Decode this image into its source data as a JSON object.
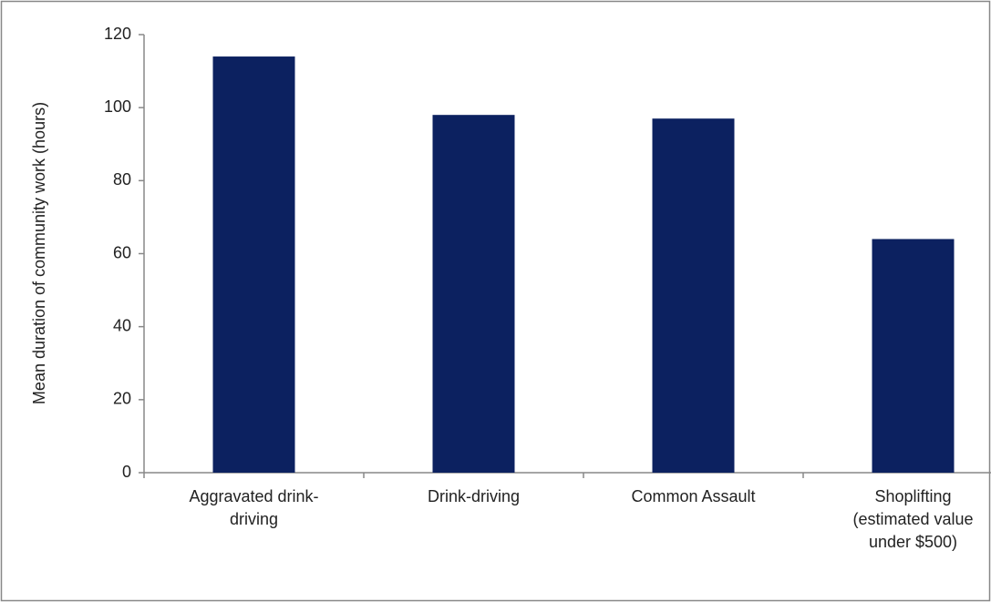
{
  "chart_data": {
    "type": "bar",
    "y_label": "Mean duration of community work  (hours)",
    "categories": [
      "Aggravated drink-driving",
      "Drink-driving",
      "Common Assault",
      "Shoplifting (estimated value under $500)"
    ],
    "values": [
      114,
      98,
      97,
      64
    ],
    "color": "#0c2160",
    "ylim": [
      0,
      120
    ],
    "yticks": [
      0,
      20,
      40,
      60,
      80,
      100,
      120
    ],
    "grid": false
  }
}
